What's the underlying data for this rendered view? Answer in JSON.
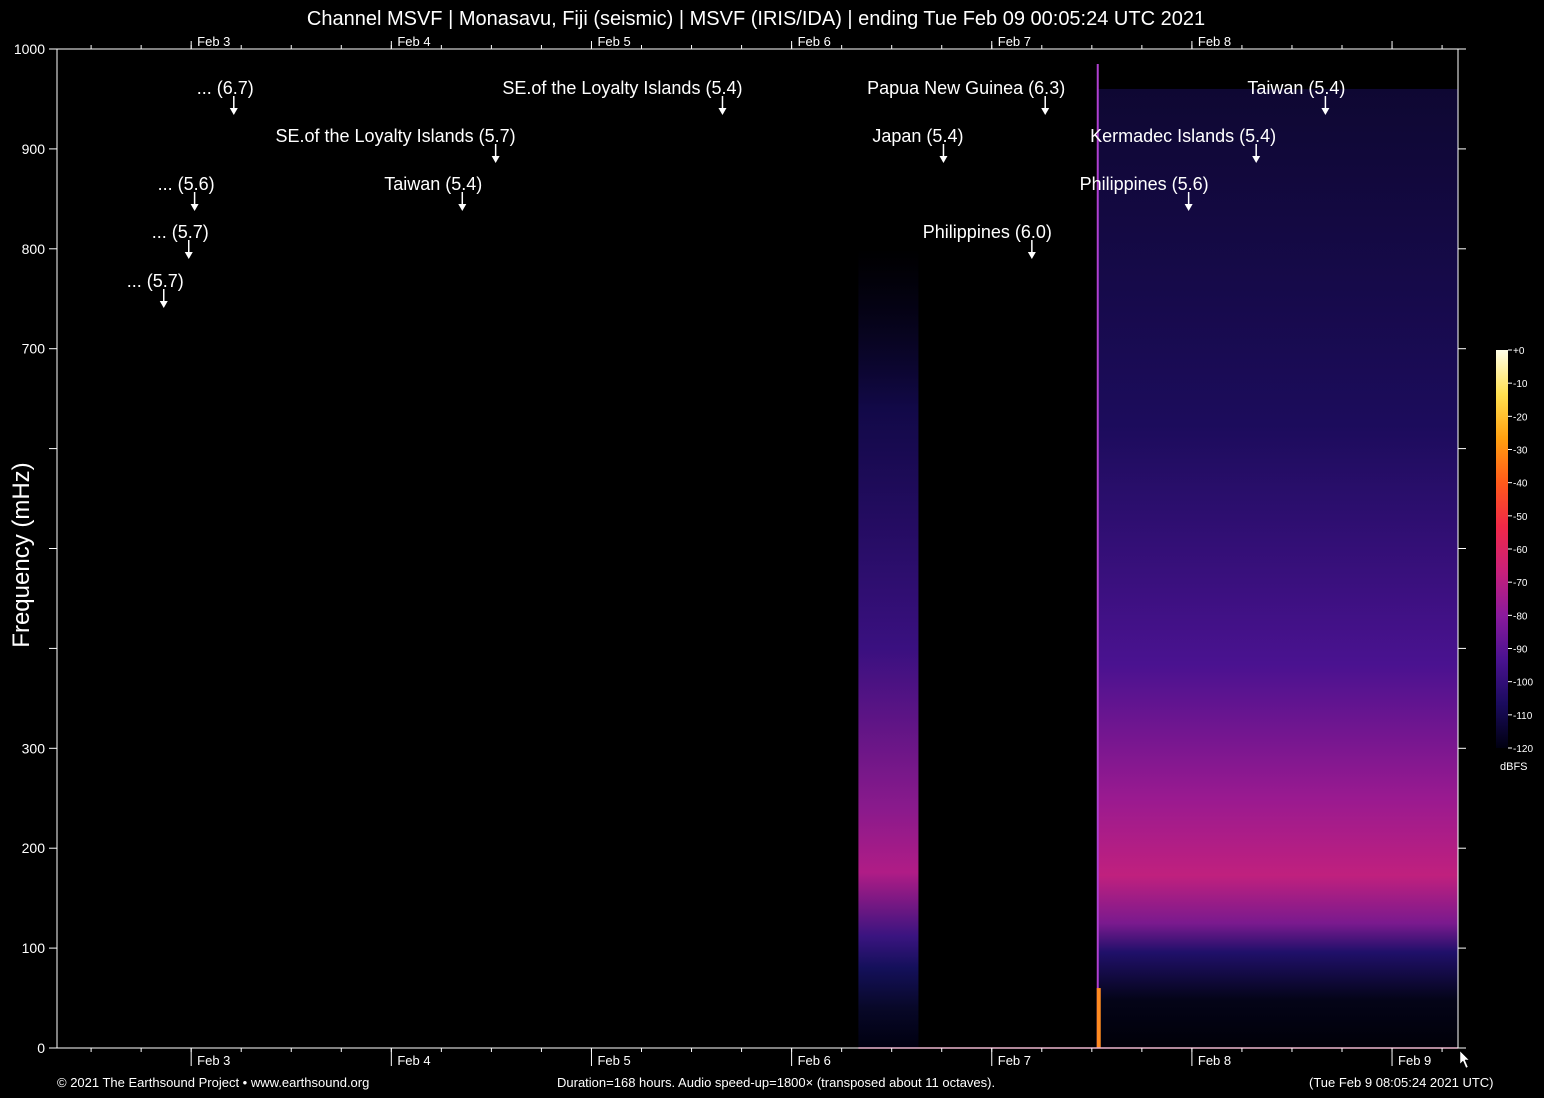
{
  "page": {
    "title": "Channel MSVF | Monasavu, Fiji (seismic) | MSVF (IRIS/IDA) | ending Tue Feb 09 00:05:24 UTC 2021",
    "footer_left": "© 2021 The Earthsound Project • www.earthsound.org",
    "footer_center": "Duration=168 hours. Audio speed-up=1800× (transposed about 11 octaves).",
    "footer_right": "(Tue Feb  9 08:05:24 2021 UTC)"
  },
  "chart_data": {
    "type": "heatmap",
    "title": "Channel MSVF | Monasavu, Fiji (seismic) | MSVF (IRIS/IDA) | ending Tue Feb 09 00:05:24 UTC 2021",
    "ylabel": "Frequency (mHz)",
    "xlabel": "",
    "x_range_hours": [
      0,
      168
    ],
    "ylim": [
      0,
      1000
    ],
    "y_ticks": [
      0,
      100,
      200,
      300,
      400,
      500,
      600,
      700,
      800,
      900,
      1000
    ],
    "y_tick_labels": [
      "0",
      "100",
      "200",
      "300",
      "",
      "",
      "",
      "700",
      "800",
      "900",
      "1000"
    ],
    "x_day_ticks": [
      {
        "label": "Feb 3",
        "hour": 16.09
      },
      {
        "label": "Feb 4",
        "hour": 40.09
      },
      {
        "label": "Feb 5",
        "hour": 64.09
      },
      {
        "label": "Feb 6",
        "hour": 88.09
      },
      {
        "label": "Feb 7",
        "hour": 112.09
      },
      {
        "label": "Feb 8",
        "hour": 136.09
      },
      {
        "label": "Feb 9",
        "hour": 160.09
      }
    ],
    "x_top_labels": [
      "Feb 3",
      "Feb 4",
      "Feb 5",
      "Feb 6",
      "Feb 7",
      "Feb 8"
    ],
    "colorbar": {
      "unit": "dBFS",
      "range": [
        -120,
        0
      ],
      "ticks": [
        "+0",
        "-10",
        "-20",
        "-30",
        "-40",
        "-50",
        "-60",
        "-70",
        "-80",
        "-90",
        "-100",
        "-110",
        "-120"
      ],
      "colors": [
        "#000010",
        "#1a0b5e",
        "#4a1290",
        "#8a1a9c",
        "#c8207a",
        "#f02848",
        "#ff5a1a",
        "#ffa010",
        "#ffe050",
        "#ffffe8"
      ]
    },
    "events": [
      {
        "label": "... (6.7)",
        "hour": 21.2,
        "level": 0
      },
      {
        "label": "... (5.6)",
        "hour": 16.5,
        "level": 2
      },
      {
        "label": "... (5.7)",
        "hour": 15.8,
        "level": 3
      },
      {
        "label": "... (5.7)",
        "hour": 12.8,
        "level": 4
      },
      {
        "label": "SE.of the Loyalty Islands (5.7)",
        "hour": 52.6,
        "level": 1
      },
      {
        "label": "Taiwan (5.4)",
        "hour": 48.6,
        "level": 2
      },
      {
        "label": "SE.of the Loyalty Islands (5.4)",
        "hour": 79.8,
        "level": 0
      },
      {
        "label": "Papua New Guinea (6.3)",
        "hour": 118.5,
        "level": 0
      },
      {
        "label": "Japan (5.4)",
        "hour": 106.3,
        "level": 1
      },
      {
        "label": "Philippines (6.0)",
        "hour": 116.9,
        "level": 3
      },
      {
        "label": "Kermadec Islands (5.4)",
        "hour": 143.8,
        "level": 1
      },
      {
        "label": "Philippines (5.6)",
        "hour": 135.7,
        "level": 2
      },
      {
        "label": "Taiwan (5.4)",
        "hour": 152.1,
        "level": 0
      }
    ],
    "data_segments": [
      {
        "start_hour": 96.1,
        "end_hour": 103.3
      },
      {
        "start_hour": 124.8,
        "end_hour": 168.0
      }
    ],
    "strong_event_hour": 124.8
  }
}
